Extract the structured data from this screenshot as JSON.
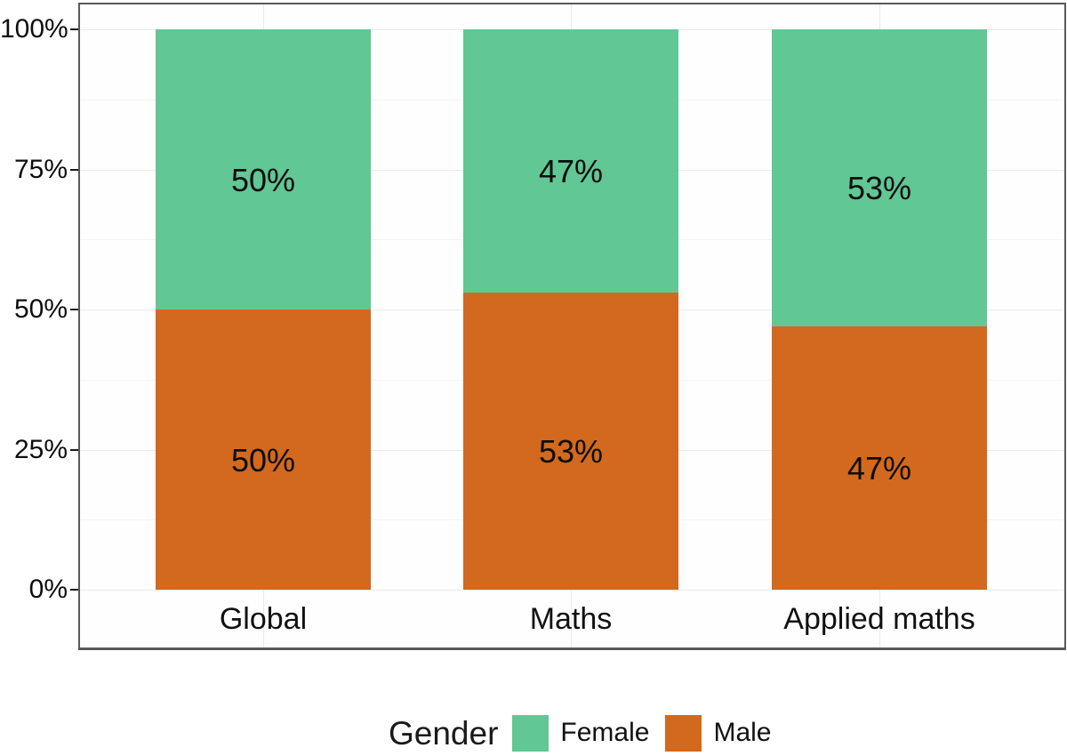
{
  "chart_data": {
    "type": "bar",
    "variant": "stacked-percent",
    "orientation": "vertical",
    "categories": [
      "Global",
      "Maths",
      "Applied maths"
    ],
    "series": [
      {
        "name": "Female",
        "color": "#61C795",
        "values": [
          50,
          47,
          53
        ],
        "data_labels": [
          "50%",
          "47%",
          "53%"
        ]
      },
      {
        "name": "Male",
        "color": "#D2691E",
        "values": [
          50,
          53,
          47
        ],
        "data_labels": [
          "50%",
          "53%",
          "47%"
        ]
      }
    ],
    "stack_order_top_to_bottom": [
      "Female",
      "Male"
    ],
    "y_axis": {
      "range": [
        0,
        100
      ],
      "ticks": [
        {
          "label": "0%",
          "value": 0
        },
        {
          "label": "25%",
          "value": 25
        },
        {
          "label": "50%",
          "value": 50
        },
        {
          "label": "75%",
          "value": 75
        },
        {
          "label": "100%",
          "value": 100
        }
      ],
      "minor_gridlines": [
        12.5,
        37.5,
        62.5,
        87.5
      ]
    },
    "grid": "on",
    "legend": {
      "title": "Gender",
      "position": "bottom",
      "items": [
        {
          "label": "Female",
          "color": "#61C795"
        },
        {
          "label": "Male",
          "color": "#D2691E"
        }
      ]
    }
  },
  "colors": {
    "female": "#61C795",
    "male": "#D2691E",
    "panel_border": "#595959",
    "grid_major": "#ecebe7",
    "grid_minor": "#f5f4f1",
    "tick": "#1a1a1a",
    "text": "#0d0d0d"
  }
}
